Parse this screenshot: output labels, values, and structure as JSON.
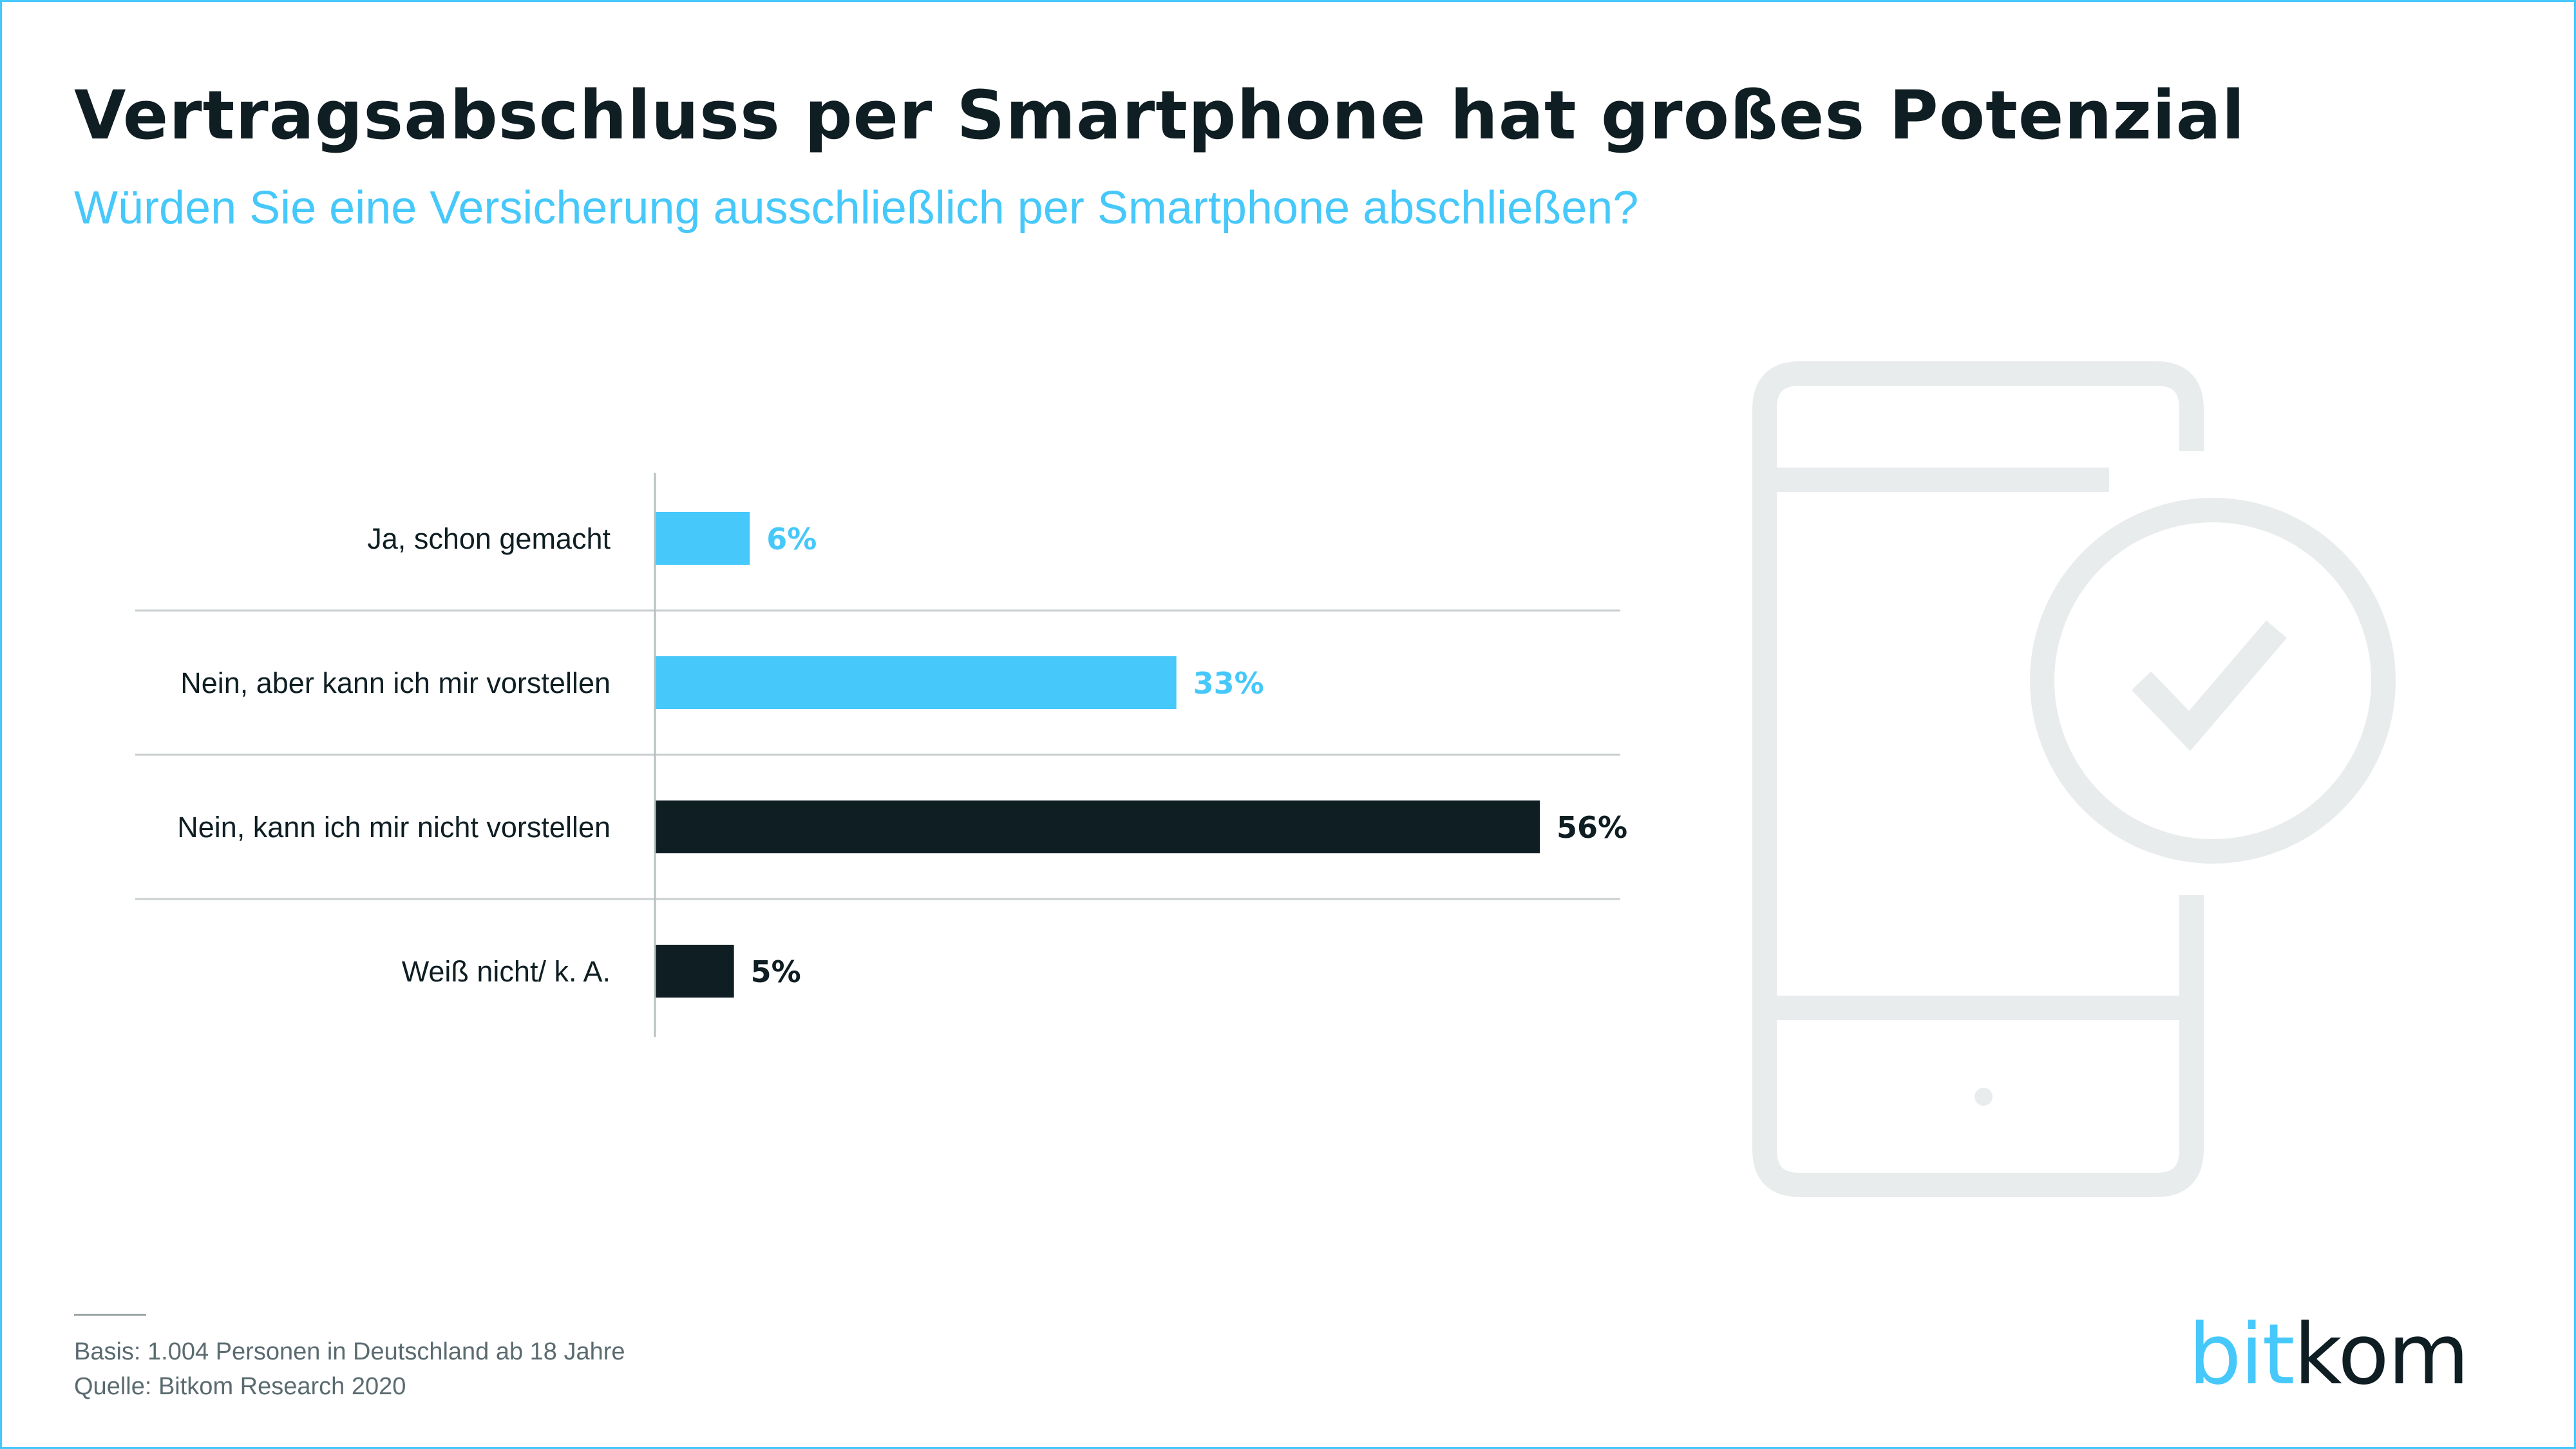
{
  "header": {
    "title": "Vertragsabschluss per Smartphone hat großes Potenzial",
    "subtitle": "Würden Sie eine Versicherung ausschließlich per Smartphone abschließen?"
  },
  "chart_data": {
    "type": "bar",
    "orientation": "horizontal",
    "categories": [
      "Ja, schon gemacht",
      "Nein, aber kann ich mir vorstellen",
      "Nein, kann ich mir nicht vorstellen",
      "Weiß nicht/ k. A."
    ],
    "values": [
      6,
      33,
      56,
      5
    ],
    "value_labels": [
      "6%",
      "33%",
      "56%",
      "5%"
    ],
    "unit": "%",
    "bar_colors": [
      "#46c8fa",
      "#46c8fa",
      "#0f1e23",
      "#0f1e23"
    ],
    "xlim": [
      0,
      56
    ],
    "grid": false
  },
  "footer": {
    "basis": "Basis: 1.004 Personen in Deutschland ab 18 Jahre",
    "source": "Quelle: Bitkom Research 2020"
  },
  "logo": {
    "part1": "bit",
    "part2": "kom"
  },
  "icons": {
    "phone": "smartphone-check-icon"
  },
  "colors": {
    "accent": "#46c8fa",
    "dark": "#0f1e23",
    "icon": "#e9ecec",
    "separator": "#c9cfd0"
  }
}
